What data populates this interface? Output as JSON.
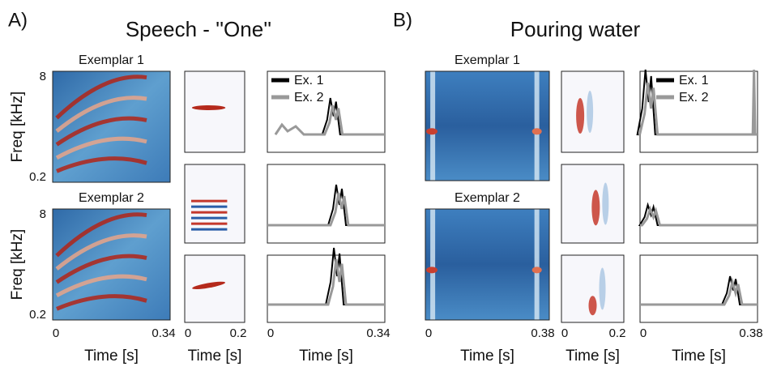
{
  "panels": [
    {
      "letter": "A)",
      "title": "Speech - ''One''",
      "exemplars": [
        "Exemplar 1",
        "Exemplar 2"
      ],
      "y_axis": {
        "label": "Freq [kHz]",
        "ticks": [
          "8",
          "0.2"
        ]
      },
      "spectrogram_x": {
        "ticks": [
          "0",
          "0.34"
        ],
        "label": "Time [s]"
      },
      "filter_x": {
        "ticks": [
          "0",
          "0.2"
        ],
        "label": "Time [s]"
      },
      "response_x": {
        "ticks": [
          "0",
          "0.34"
        ],
        "label": "Time [s]"
      },
      "legend": [
        "Ex. 1",
        "Ex. 2"
      ]
    },
    {
      "letter": "B)",
      "title": "Pouring water",
      "exemplars": [
        "Exemplar 1",
        "Exemplar 2"
      ],
      "spectrogram_x": {
        "ticks": [
          "0",
          "0.38"
        ],
        "label": "Time [s]"
      },
      "filter_x": {
        "ticks": [
          "0",
          "0.2"
        ],
        "label": "Time [s]"
      },
      "response_x": {
        "ticks": [
          "0",
          "0.38"
        ],
        "label": "Time [s]"
      },
      "legend": [
        "Ex. 1",
        "Ex. 2"
      ]
    }
  ]
}
